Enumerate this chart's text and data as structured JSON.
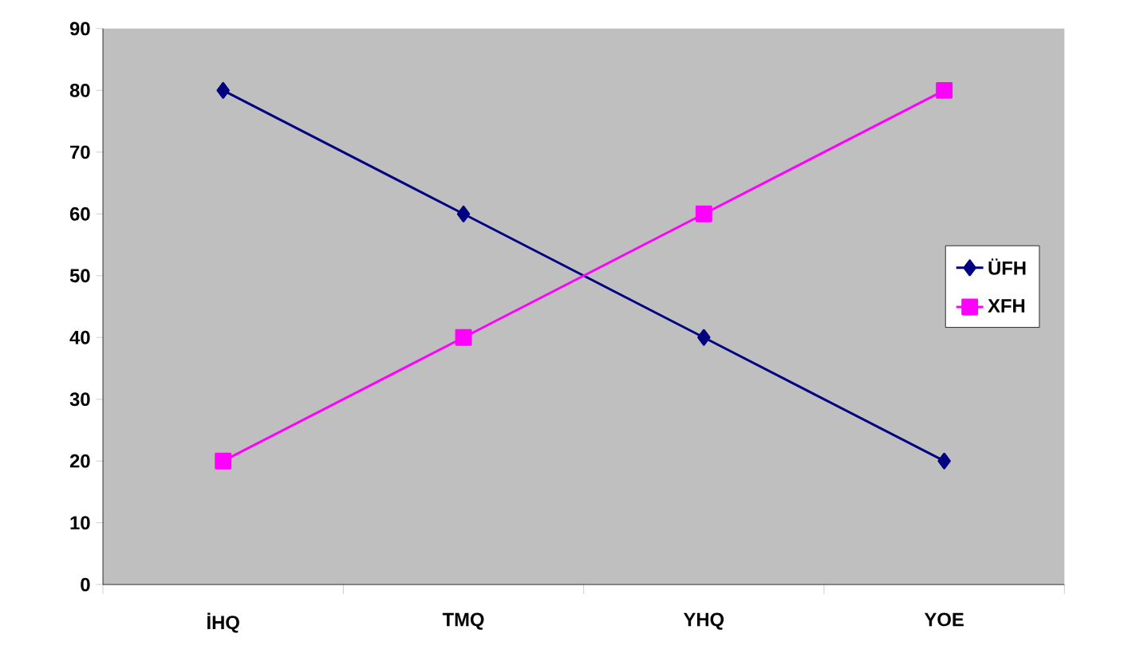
{
  "chart_data": {
    "type": "line",
    "categories": [
      "İHQ",
      "TMQ",
      "YHQ",
      "YOE"
    ],
    "series": [
      {
        "name": "ÜFH",
        "color": "#000080",
        "marker": "diamond",
        "values": [
          80,
          60,
          40,
          20
        ]
      },
      {
        "name": "XFH",
        "color": "#ff00ff",
        "marker": "square",
        "values": [
          20,
          40,
          60,
          80
        ]
      }
    ],
    "ylim": [
      0,
      90
    ],
    "yticks": [
      0,
      10,
      20,
      30,
      40,
      50,
      60,
      70,
      80,
      90
    ],
    "legend": "right",
    "grid": false,
    "line_style": "solid"
  }
}
